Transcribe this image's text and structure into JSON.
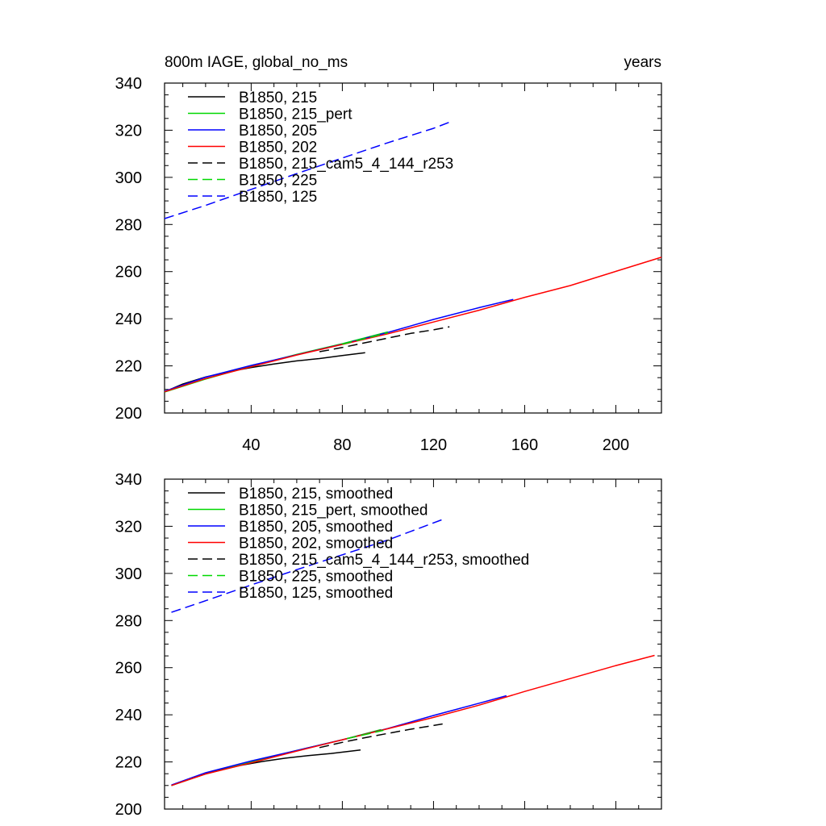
{
  "figure": {
    "title_left": "800m IAGE, global_no_ms",
    "title_right": "years"
  },
  "chart_data": [
    {
      "type": "line",
      "xlim": [
        2,
        220
      ],
      "ylim": [
        200,
        340
      ],
      "x_ticks": [
        40,
        80,
        120,
        160,
        200
      ],
      "y_ticks": [
        200,
        220,
        240,
        260,
        280,
        300,
        320,
        340
      ],
      "x_tick_labels_shown": true,
      "legend_placement": "top-left",
      "series": [
        {
          "name": "B1850, 215",
          "color": "#000000",
          "dash": "solid",
          "x": [
            2,
            10,
            20,
            30,
            40,
            50,
            60,
            70,
            80,
            90
          ],
          "y": [
            209,
            212.3,
            215.3,
            217.5,
            219.3,
            220.8,
            222.1,
            223.1,
            224.4,
            225.6
          ]
        },
        {
          "name": "B1850, 215_pert",
          "color": "#00d800",
          "dash": "solid",
          "x": [
            2,
            20,
            40,
            60,
            80,
            100
          ],
          "y": [
            208.9,
            214.4,
            219.9,
            224.9,
            229.4,
            234.4
          ]
        },
        {
          "name": "B1850, 205",
          "color": "#0000ff",
          "dash": "solid",
          "x": [
            2,
            20,
            40,
            60,
            80,
            100,
            120,
            140,
            155
          ],
          "y": [
            209.2,
            215.2,
            220.2,
            224.7,
            229.2,
            234.2,
            239.7,
            244.7,
            248.2
          ]
        },
        {
          "name": "B1850, 202",
          "color": "#ff0000",
          "dash": "solid",
          "x": [
            2,
            20,
            40,
            60,
            80,
            100,
            120,
            140,
            160,
            180,
            200,
            220
          ],
          "y": [
            209,
            214.6,
            219.6,
            224.6,
            229.1,
            233.6,
            238.6,
            243.6,
            249.1,
            254.1,
            260.1,
            266.1
          ]
        },
        {
          "name": "B1850, 215_cam5_4_144_r253",
          "color": "#000000",
          "dash": "dashed",
          "x": [
            70,
            80,
            90,
            100,
            110,
            120,
            127
          ],
          "y": [
            226,
            227.8,
            229.8,
            231.8,
            233.8,
            235.3,
            236.6
          ]
        },
        {
          "name": "B1850, 225",
          "color": "#00d800",
          "dash": "dashed",
          "x": [
            80,
            90,
            100
          ],
          "y": [
            229.2,
            231.6,
            234.1
          ]
        },
        {
          "name": "B1850, 125",
          "color": "#0000ff",
          "dash": "dashed",
          "x": [
            2,
            20,
            40,
            60,
            80,
            100,
            120,
            127
          ],
          "y": [
            282.5,
            288.1,
            294.9,
            301.6,
            308.2,
            314.7,
            320.8,
            323.4
          ]
        }
      ]
    },
    {
      "type": "line",
      "xlim": [
        2,
        220
      ],
      "ylim": [
        200,
        340
      ],
      "x_ticks": [
        40,
        80,
        120,
        160,
        200
      ],
      "y_ticks": [
        200,
        220,
        240,
        260,
        280,
        300,
        320,
        340
      ],
      "x_tick_labels_shown": false,
      "legend_placement": "top-left",
      "series": [
        {
          "name": "B1850, 215, smoothed",
          "color": "#000000",
          "dash": "solid",
          "x": [
            5,
            15,
            25,
            35,
            45,
            55,
            65,
            75,
            88
          ],
          "y": [
            210,
            213.6,
            216.4,
            218.5,
            220.2,
            221.6,
            222.7,
            223.6,
            225.1
          ]
        },
        {
          "name": "B1850, 215_pert, smoothed",
          "color": "#00d800",
          "dash": "solid",
          "x": [
            5,
            20,
            40,
            60,
            80,
            97
          ],
          "y": [
            210,
            214.9,
            219.9,
            224.9,
            229.4,
            233.7
          ]
        },
        {
          "name": "B1850, 205, smoothed",
          "color": "#0000ff",
          "dash": "solid",
          "x": [
            5,
            20,
            40,
            60,
            80,
            100,
            120,
            140,
            152
          ],
          "y": [
            210.2,
            215.4,
            220.4,
            224.9,
            229.4,
            234.2,
            239.7,
            244.9,
            248.1
          ]
        },
        {
          "name": "B1850, 202, smoothed",
          "color": "#ff0000",
          "dash": "solid",
          "x": [
            5,
            20,
            40,
            60,
            80,
            100,
            120,
            140,
            160,
            180,
            200,
            217
          ],
          "y": [
            210,
            214.9,
            219.6,
            224.6,
            229.4,
            234.1,
            238.9,
            244.1,
            249.9,
            255.4,
            260.9,
            265.2
          ]
        },
        {
          "name": "B1850, 215_cam5_4_144_r253, smoothed",
          "color": "#000000",
          "dash": "dashed",
          "x": [
            70,
            80,
            90,
            100,
            110,
            124
          ],
          "y": [
            226.1,
            228.3,
            230.3,
            232.1,
            233.9,
            236.1
          ]
        },
        {
          "name": "B1850, 225, smoothed",
          "color": "#00d800",
          "dash": "dashed",
          "x": [
            82,
            90,
            98
          ],
          "y": [
            229.9,
            231.6,
            233.4
          ]
        },
        {
          "name": "B1850, 125, smoothed",
          "color": "#0000ff",
          "dash": "dashed",
          "x": [
            5,
            20,
            40,
            60,
            80,
            100,
            124
          ],
          "y": [
            283.5,
            288.4,
            295.1,
            301.6,
            307.9,
            314.2,
            322.9
          ]
        }
      ]
    }
  ]
}
